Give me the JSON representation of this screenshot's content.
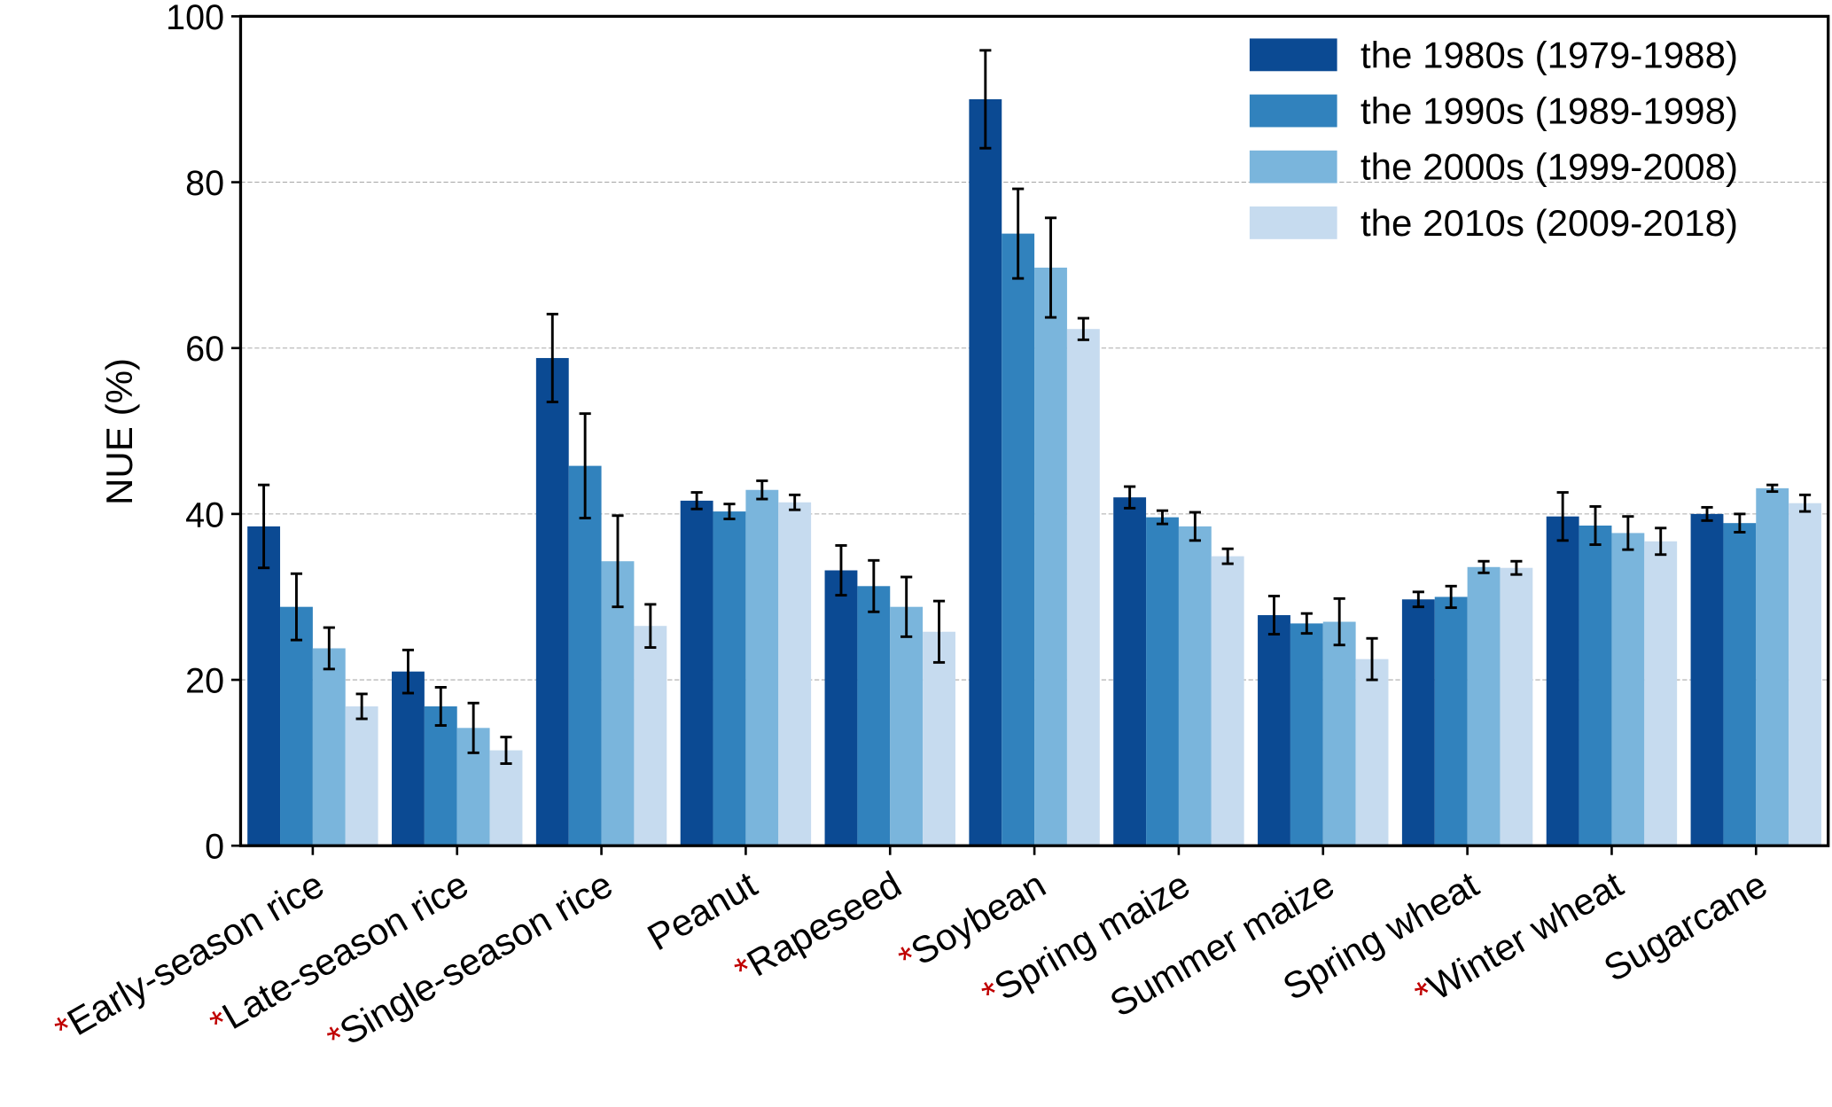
{
  "chart_data": {
    "type": "bar",
    "y_label": "NUE (%)",
    "categories": [
      "Early-season rice",
      "Late-season rice",
      "Single-season rice",
      "Peanut",
      "Rapeseed",
      "Soybean",
      "Spring maize",
      "Summer maize",
      "Spring wheat",
      "Winter wheat",
      "Sugarcane"
    ],
    "category_marker": "*",
    "category_marker_color": "#c00000",
    "marked_categories": [
      true,
      true,
      true,
      false,
      true,
      true,
      true,
      false,
      false,
      true,
      false
    ],
    "series": [
      {
        "name": "the 1980s (1979-1988)",
        "color": "#0b4a93",
        "values": [
          38.5,
          21,
          58.8,
          41.6,
          33.2,
          90,
          42,
          27.8,
          29.7,
          39.7,
          40
        ],
        "errors": [
          5,
          2.6,
          5.3,
          1,
          3,
          5.9,
          1.3,
          2.3,
          0.9,
          2.9,
          0.8
        ]
      },
      {
        "name": "the 1990s (1989-1998)",
        "color": "#3182bd",
        "values": [
          28.8,
          16.8,
          45.8,
          40.3,
          31.3,
          73.8,
          39.6,
          26.8,
          30,
          38.6,
          38.9
        ],
        "errors": [
          4,
          2.3,
          6.3,
          0.9,
          3.1,
          5.4,
          0.8,
          1.2,
          1.3,
          2.3,
          1.1
        ]
      },
      {
        "name": "the 2000s (1999-2008)",
        "color": "#7ab5dc",
        "values": [
          23.8,
          14.2,
          34.3,
          42.9,
          28.8,
          69.7,
          38.5,
          27,
          33.6,
          37.7,
          43.1
        ],
        "errors": [
          2.5,
          3,
          5.5,
          1.1,
          3.6,
          6,
          1.7,
          2.8,
          0.7,
          2,
          0.4
        ]
      },
      {
        "name": "the 2010s (2009-2018)",
        "color": "#c6dbef",
        "values": [
          16.8,
          11.5,
          26.5,
          41.4,
          25.8,
          62.3,
          34.9,
          22.5,
          33.5,
          36.7,
          41.3
        ],
        "errors": [
          1.5,
          1.6,
          2.6,
          0.9,
          3.7,
          1.3,
          0.9,
          2.5,
          0.8,
          1.6,
          1
        ]
      }
    ],
    "ylim": [
      0,
      100
    ],
    "yticks": [
      0,
      20,
      40,
      60,
      80,
      100
    ],
    "grid": true,
    "legend": "upper right"
  }
}
